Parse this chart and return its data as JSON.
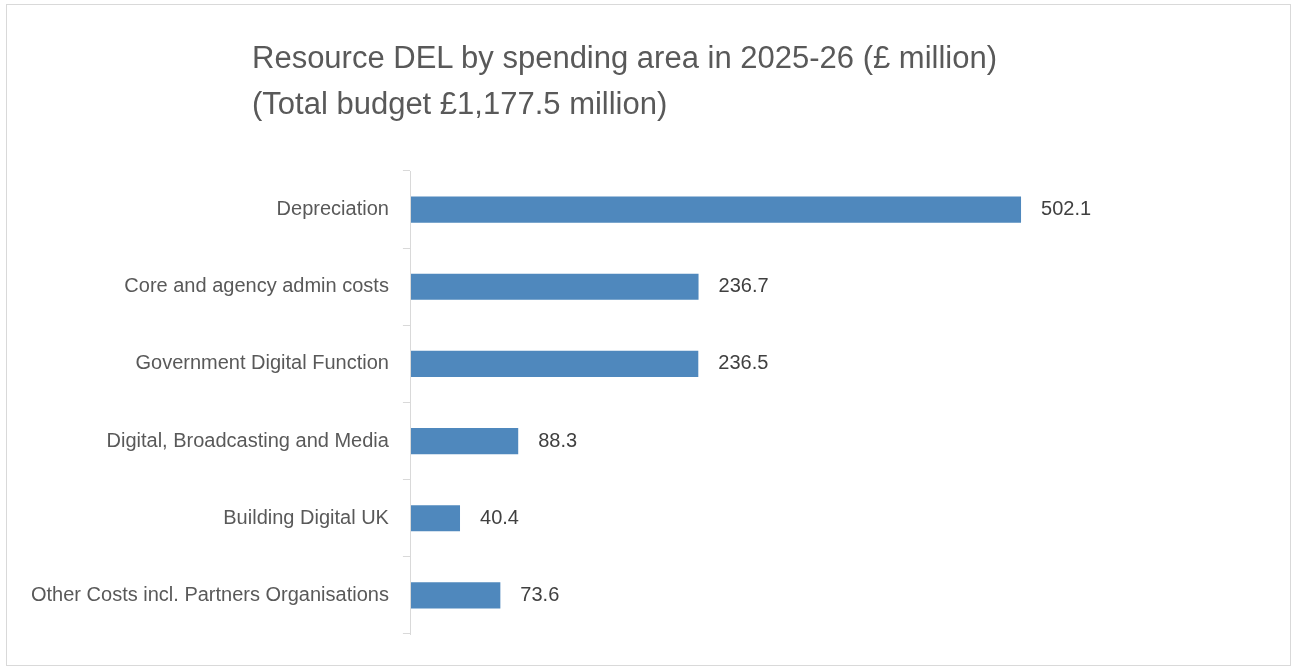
{
  "chart_data": {
    "type": "bar",
    "orientation": "horizontal",
    "title": "Resource DEL by spending area in 2025-26 (£ million)\n(Total budget £1,177.5 million)",
    "categories": [
      "Depreciation",
      "Core and agency admin costs",
      "Government Digital Function",
      "Digital, Broadcasting and Media",
      "Building Digital UK",
      "Other Costs incl. Partners Organisations"
    ],
    "values": [
      502.1,
      236.7,
      236.5,
      88.3,
      40.4,
      73.6
    ],
    "color": "#4f88bd",
    "data_labels": true,
    "legend": false
  }
}
